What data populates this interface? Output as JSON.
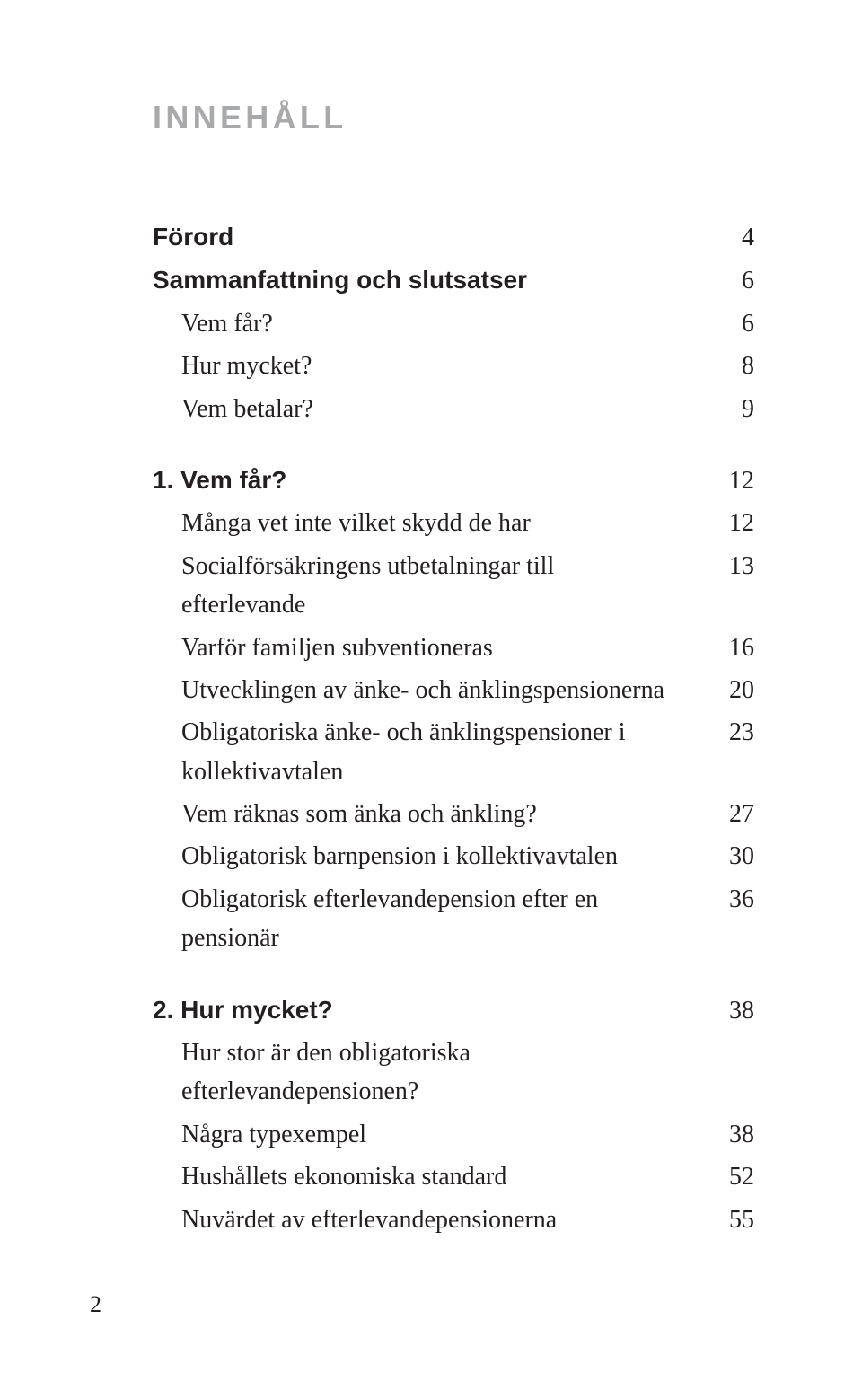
{
  "title": "INNEHÅLL",
  "toc": [
    {
      "label": "Förord",
      "page": "4",
      "bold": true,
      "indent": false
    },
    {
      "label": "Sammanfattning och slutsatser",
      "page": "6",
      "bold": true,
      "indent": false
    },
    {
      "label": "Vem får?",
      "page": "6",
      "bold": false,
      "indent": true
    },
    {
      "label": "Hur mycket?",
      "page": "8",
      "bold": false,
      "indent": true
    },
    {
      "label": "Vem betalar?",
      "page": "9",
      "bold": false,
      "indent": true
    },
    {
      "gap": true
    },
    {
      "label": "1. Vem får?",
      "page": "12",
      "bold": true,
      "indent": false
    },
    {
      "label": "Många vet inte vilket skydd de har",
      "page": "12",
      "bold": false,
      "indent": true
    },
    {
      "label": "Socialförsäkringens utbetalningar till efterlevande",
      "page": "13",
      "bold": false,
      "indent": true
    },
    {
      "label": "Varför familjen subventioneras",
      "page": "16",
      "bold": false,
      "indent": true
    },
    {
      "label": "Utvecklingen av änke- och änklingspensionerna",
      "page": "20",
      "bold": false,
      "indent": true
    },
    {
      "label": "Obligatoriska änke- och änklingspensioner i kollektivavtalen",
      "page": "23",
      "bold": false,
      "indent": true
    },
    {
      "label": "Vem räknas som änka och änkling?",
      "page": "27",
      "bold": false,
      "indent": true
    },
    {
      "label": "Obligatorisk barnpension i kollektivavtalen",
      "page": "30",
      "bold": false,
      "indent": true
    },
    {
      "label": "Obligatorisk efterlevandepension efter en pensionär",
      "page": "36",
      "bold": false,
      "indent": true
    },
    {
      "gap": true
    },
    {
      "label": "2. Hur mycket?",
      "page": "38",
      "bold": true,
      "indent": false
    },
    {
      "label": "Hur stor är den obligatoriska efterlevandepensionen?",
      "page": "",
      "bold": false,
      "indent": true
    },
    {
      "label": "Några typexempel",
      "page": "38",
      "bold": false,
      "indent": true
    },
    {
      "label": "Hushållets ekonomiska standard",
      "page": "52",
      "bold": false,
      "indent": true
    },
    {
      "label": "Nuvärdet av efterlevandepensionerna",
      "page": "55",
      "bold": false,
      "indent": true
    }
  ],
  "page_number": "2",
  "colors": {
    "title_color": "#a7a9ab",
    "text_color": "#231f20",
    "background": "#ffffff"
  },
  "fonts": {
    "title_family": "Arial",
    "title_size_pt": 27,
    "bold_family": "Arial",
    "body_family": "Georgia",
    "body_size_pt": 21
  }
}
